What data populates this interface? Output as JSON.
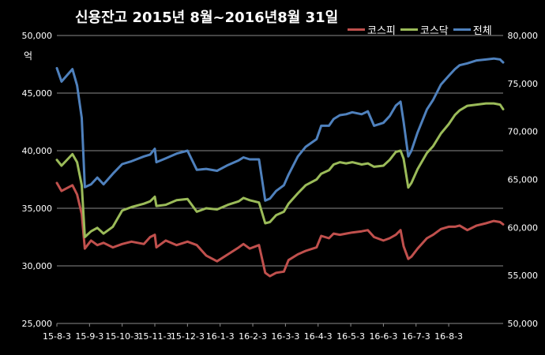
{
  "chart_data": {
    "type": "line",
    "title": "신용잔고  2015년 8월~2016년8월 31일",
    "left_axis_unit": "억",
    "left_ylim": [
      25000,
      50000
    ],
    "left_yticks": [
      "25,000",
      "30,000",
      "35,000",
      "40,000",
      "45,000",
      "50,000"
    ],
    "left_ytick_values": [
      25000,
      30000,
      35000,
      40000,
      45000,
      50000
    ],
    "right_ylim": [
      50000,
      80000
    ],
    "right_yticks": [
      "50,000",
      "55,000",
      "60,000",
      "65,000",
      "70,000",
      "75,000",
      "80,000"
    ],
    "right_ytick_values": [
      50000,
      55000,
      60000,
      65000,
      70000,
      75000,
      80000
    ],
    "x_tick_labels": [
      "15-8-3",
      "15-9-3",
      "15-10-3",
      "15-11-3",
      "15-12-3",
      "16-1-3",
      "16-2-3",
      "16-3-3",
      "16-4-3",
      "16-5-3",
      "16-6-3",
      "16-7-3",
      "16-8-3"
    ],
    "x_tick_index": [
      0,
      21,
      42,
      63,
      84,
      105,
      126,
      147,
      168,
      189,
      210,
      231,
      252
    ],
    "grid": true,
    "legend_position": "top-right",
    "series": [
      {
        "name": "코스피",
        "axis": "left",
        "color": "#c0504d",
        "points": [
          [
            0,
            37200
          ],
          [
            3,
            36500
          ],
          [
            10,
            37000
          ],
          [
            13,
            36200
          ],
          [
            16,
            34500
          ],
          [
            18,
            31500
          ],
          [
            22,
            32200
          ],
          [
            26,
            31800
          ],
          [
            30,
            32000
          ],
          [
            36,
            31600
          ],
          [
            42,
            31900
          ],
          [
            48,
            32100
          ],
          [
            56,
            31900
          ],
          [
            60,
            32500
          ],
          [
            63,
            32700
          ],
          [
            64,
            31600
          ],
          [
            70,
            32200
          ],
          [
            77,
            31800
          ],
          [
            84,
            32100
          ],
          [
            90,
            31800
          ],
          [
            96,
            30900
          ],
          [
            103,
            30400
          ],
          [
            110,
            31000
          ],
          [
            117,
            31600
          ],
          [
            120,
            31900
          ],
          [
            124,
            31500
          ],
          [
            130,
            31800
          ],
          [
            134,
            29400
          ],
          [
            137,
            29100
          ],
          [
            141,
            29400
          ],
          [
            146,
            29500
          ],
          [
            149,
            30500
          ],
          [
            155,
            31000
          ],
          [
            160,
            31300
          ],
          [
            167,
            31600
          ],
          [
            170,
            32600
          ],
          [
            175,
            32400
          ],
          [
            178,
            32800
          ],
          [
            182,
            32700
          ],
          [
            186,
            32800
          ],
          [
            190,
            32900
          ],
          [
            196,
            33000
          ],
          [
            200,
            33100
          ],
          [
            204,
            32500
          ],
          [
            210,
            32200
          ],
          [
            214,
            32400
          ],
          [
            218,
            32700
          ],
          [
            221,
            33100
          ],
          [
            223,
            31700
          ],
          [
            226,
            30600
          ],
          [
            228,
            30800
          ],
          [
            232,
            31500
          ],
          [
            238,
            32400
          ],
          [
            242,
            32700
          ],
          [
            247,
            33200
          ],
          [
            252,
            33400
          ],
          [
            256,
            33400
          ],
          [
            259,
            33500
          ],
          [
            264,
            33100
          ],
          [
            270,
            33500
          ],
          [
            276,
            33700
          ],
          [
            281,
            33900
          ],
          [
            285,
            33800
          ],
          [
            287,
            33600
          ]
        ]
      },
      {
        "name": "코스닥",
        "axis": "left",
        "color": "#9bbb59",
        "points": [
          [
            0,
            39200
          ],
          [
            3,
            38700
          ],
          [
            10,
            39700
          ],
          [
            13,
            39000
          ],
          [
            16,
            37000
          ],
          [
            18,
            32500
          ],
          [
            22,
            33000
          ],
          [
            26,
            33300
          ],
          [
            30,
            32800
          ],
          [
            36,
            33400
          ],
          [
            42,
            34800
          ],
          [
            48,
            35100
          ],
          [
            56,
            35400
          ],
          [
            60,
            35600
          ],
          [
            63,
            36000
          ],
          [
            64,
            35200
          ],
          [
            70,
            35300
          ],
          [
            77,
            35700
          ],
          [
            84,
            35800
          ],
          [
            90,
            34700
          ],
          [
            96,
            35000
          ],
          [
            103,
            34900
          ],
          [
            110,
            35300
          ],
          [
            117,
            35600
          ],
          [
            120,
            35900
          ],
          [
            124,
            35700
          ],
          [
            130,
            35500
          ],
          [
            134,
            33700
          ],
          [
            137,
            33800
          ],
          [
            141,
            34400
          ],
          [
            146,
            34700
          ],
          [
            149,
            35400
          ],
          [
            155,
            36300
          ],
          [
            160,
            37000
          ],
          [
            167,
            37500
          ],
          [
            170,
            38000
          ],
          [
            175,
            38300
          ],
          [
            178,
            38800
          ],
          [
            182,
            39000
          ],
          [
            186,
            38900
          ],
          [
            190,
            39000
          ],
          [
            196,
            38800
          ],
          [
            200,
            38900
          ],
          [
            204,
            38600
          ],
          [
            210,
            38700
          ],
          [
            214,
            39200
          ],
          [
            218,
            39900
          ],
          [
            221,
            40000
          ],
          [
            223,
            39300
          ],
          [
            226,
            36800
          ],
          [
            228,
            37200
          ],
          [
            232,
            38400
          ],
          [
            238,
            39800
          ],
          [
            242,
            40400
          ],
          [
            247,
            41500
          ],
          [
            252,
            42300
          ],
          [
            256,
            43100
          ],
          [
            259,
            43500
          ],
          [
            264,
            43900
          ],
          [
            270,
            44000
          ],
          [
            276,
            44100
          ],
          [
            281,
            44100
          ],
          [
            285,
            44000
          ],
          [
            287,
            43600
          ]
        ]
      },
      {
        "name": "전체",
        "axis": "right",
        "color": "#4f81bd",
        "points": [
          [
            0,
            76600
          ],
          [
            3,
            75200
          ],
          [
            10,
            76500
          ],
          [
            13,
            74800
          ],
          [
            16,
            71400
          ],
          [
            18,
            64200
          ],
          [
            22,
            64500
          ],
          [
            26,
            65200
          ],
          [
            30,
            64500
          ],
          [
            36,
            65600
          ],
          [
            42,
            66600
          ],
          [
            48,
            66900
          ],
          [
            56,
            67400
          ],
          [
            60,
            67600
          ],
          [
            63,
            68200
          ],
          [
            64,
            66800
          ],
          [
            70,
            67200
          ],
          [
            77,
            67700
          ],
          [
            84,
            68000
          ],
          [
            90,
            66000
          ],
          [
            96,
            66100
          ],
          [
            103,
            65900
          ],
          [
            110,
            66500
          ],
          [
            117,
            67000
          ],
          [
            120,
            67300
          ],
          [
            124,
            67100
          ],
          [
            130,
            67100
          ],
          [
            134,
            62800
          ],
          [
            137,
            63000
          ],
          [
            141,
            63800
          ],
          [
            146,
            64400
          ],
          [
            149,
            65500
          ],
          [
            155,
            67400
          ],
          [
            160,
            68400
          ],
          [
            167,
            69200
          ],
          [
            170,
            70600
          ],
          [
            175,
            70600
          ],
          [
            178,
            71300
          ],
          [
            182,
            71700
          ],
          [
            186,
            71800
          ],
          [
            190,
            72000
          ],
          [
            196,
            71800
          ],
          [
            200,
            72100
          ],
          [
            204,
            70600
          ],
          [
            210,
            70900
          ],
          [
            214,
            71600
          ],
          [
            218,
            72700
          ],
          [
            221,
            73100
          ],
          [
            223,
            71000
          ],
          [
            226,
            67400
          ],
          [
            228,
            68000
          ],
          [
            232,
            69900
          ],
          [
            238,
            72300
          ],
          [
            242,
            73300
          ],
          [
            247,
            74900
          ],
          [
            252,
            75800
          ],
          [
            256,
            76500
          ],
          [
            259,
            76900
          ],
          [
            264,
            77100
          ],
          [
            270,
            77400
          ],
          [
            276,
            77500
          ],
          [
            281,
            77600
          ],
          [
            285,
            77500
          ],
          [
            287,
            77200
          ]
        ]
      }
    ]
  }
}
